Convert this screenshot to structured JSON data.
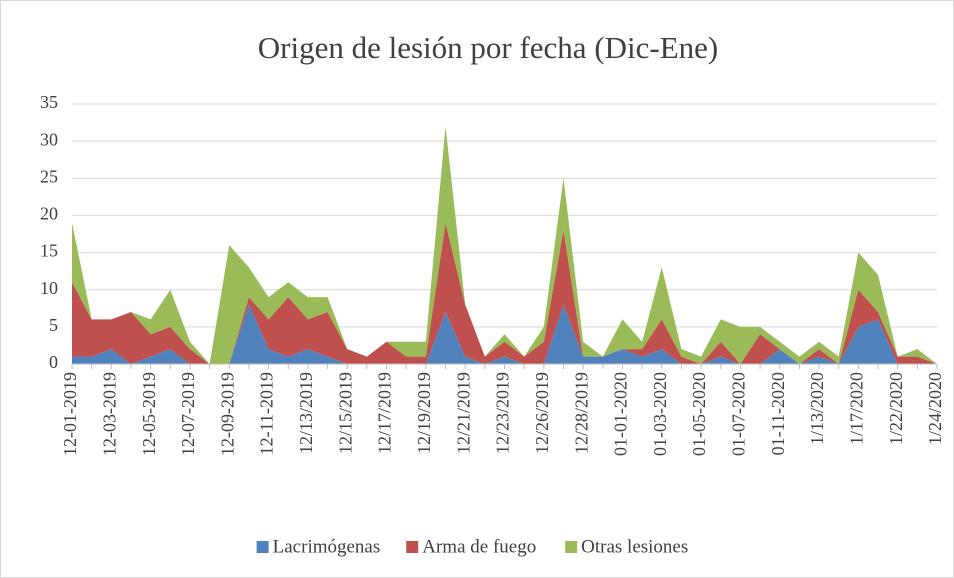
{
  "chart_data": {
    "type": "stacked_area",
    "title": "Origen de lesión por fecha (Dic-Ene)",
    "categories": [
      "12-01-2019",
      null,
      "12-03-2019",
      null,
      "12-05-2019",
      null,
      "12-07-2019",
      null,
      "12-09-2019",
      null,
      "12-11-2019",
      null,
      "12/13/2019",
      null,
      "12/15/2019",
      null,
      "12/17/2019",
      null,
      "12/19/2019",
      null,
      "12/21/2019",
      null,
      "12/23/2019",
      null,
      "12/26/2019",
      null,
      "12/28/2019",
      null,
      "01-01-2020",
      null,
      "01-03-2020",
      null,
      "01-05-2020",
      null,
      "01-07-2020",
      null,
      "01-11-2020",
      null,
      "1/13/2020",
      null,
      "1/17/2020",
      null,
      "1/22/2020",
      null,
      "1/24/2020"
    ],
    "series": [
      {
        "name": "Lacrimógenas",
        "color": "#4f81bd",
        "values": [
          1,
          1,
          2,
          0,
          1,
          2,
          0,
          0,
          0,
          8,
          2,
          1,
          2,
          1,
          0,
          0,
          0,
          0,
          0,
          7,
          1,
          0,
          1,
          0,
          0,
          8,
          1,
          1,
          2,
          1,
          2,
          0,
          0,
          1,
          0,
          0,
          2,
          0,
          1,
          0,
          5,
          6,
          0,
          0,
          0
        ]
      },
      {
        "name": "Arma de fuego",
        "color": "#c0504d",
        "values": [
          10,
          5,
          4,
          7,
          3,
          3,
          2,
          0,
          0,
          1,
          4,
          8,
          4,
          6,
          2,
          1,
          3,
          1,
          1,
          12,
          7,
          1,
          2,
          1,
          3,
          10,
          0,
          0,
          0,
          1,
          4,
          1,
          0,
          2,
          0,
          4,
          0,
          0,
          1,
          0,
          5,
          1,
          1,
          1,
          0
        ]
      },
      {
        "name": "Otras lesiones",
        "color": "#9bbb59",
        "values": [
          8,
          0,
          0,
          0,
          2,
          5,
          1,
          0,
          16,
          4,
          3,
          2,
          3,
          2,
          0,
          0,
          0,
          2,
          2,
          13,
          0,
          0,
          1,
          0,
          2,
          7,
          2,
          0,
          4,
          1,
          7,
          1,
          1,
          3,
          5,
          1,
          1,
          1,
          1,
          1,
          5,
          5,
          0,
          1,
          0
        ]
      }
    ],
    "ylim": [
      0,
      35
    ],
    "yticks": [
      0,
      5,
      10,
      15,
      20,
      25,
      30,
      35
    ],
    "grid": true
  }
}
